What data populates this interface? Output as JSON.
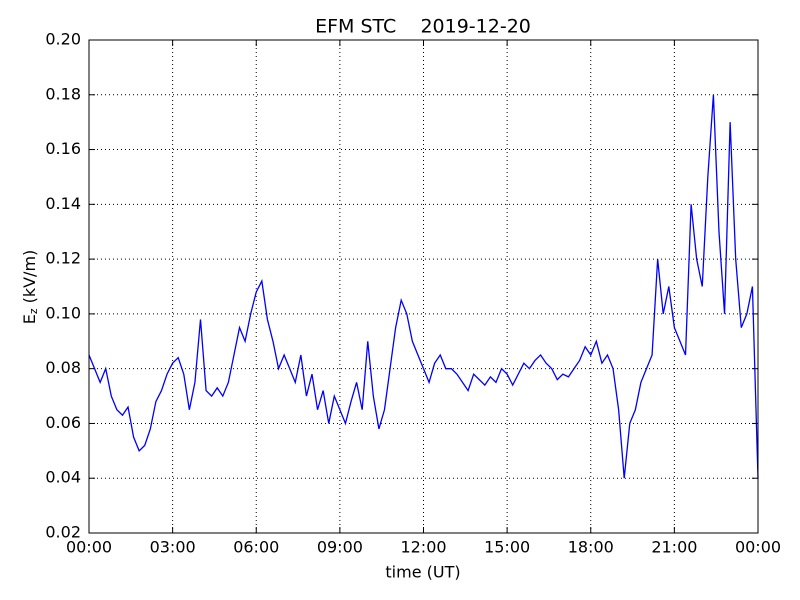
{
  "chart_data": {
    "type": "line",
    "title": "EFM STC    2019-12-20",
    "x_label": "time (UT)",
    "y_label": {
      "base": "E",
      "subscript": "z",
      "unit": "(kV/m)"
    },
    "x": [
      0,
      0.2,
      0.4,
      0.6,
      0.8,
      1,
      1.2,
      1.4,
      1.6,
      1.8,
      2,
      2.2,
      2.4,
      2.6,
      2.8,
      3,
      3.2,
      3.4,
      3.6,
      3.8,
      4,
      4.2,
      4.4,
      4.6,
      4.8,
      5,
      5.2,
      5.4,
      5.6,
      5.8,
      6,
      6.2,
      6.4,
      6.6,
      6.8,
      7,
      7.2,
      7.4,
      7.6,
      7.8,
      8,
      8.2,
      8.4,
      8.6,
      8.8,
      9,
      9.2,
      9.4,
      9.6,
      9.8,
      10,
      10.2,
      10.4,
      10.6,
      10.8,
      11,
      11.2,
      11.4,
      11.6,
      11.8,
      12,
      12.2,
      12.4,
      12.6,
      12.8,
      13,
      13.2,
      13.4,
      13.6,
      13.8,
      14,
      14.2,
      14.4,
      14.6,
      14.8,
      15,
      15.2,
      15.4,
      15.6,
      15.8,
      16,
      16.2,
      16.4,
      16.6,
      16.8,
      17,
      17.2,
      17.4,
      17.6,
      17.8,
      18,
      18.2,
      18.4,
      18.6,
      18.8,
      19,
      19.2,
      19.4,
      19.6,
      19.8,
      20,
      20.2,
      20.4,
      20.6,
      20.8,
      21,
      21.2,
      21.4,
      21.6,
      21.8,
      22,
      22.2,
      22.4,
      22.6,
      22.8,
      23,
      23.2,
      23.4,
      23.6,
      23.8,
      24
    ],
    "series": [
      {
        "color": "#0000ff",
        "values": [
          0.085,
          0.08,
          0.075,
          0.08,
          0.07,
          0.065,
          0.063,
          0.066,
          0.055,
          0.05,
          0.052,
          0.058,
          0.068,
          0.072,
          0.078,
          0.082,
          0.084,
          0.078,
          0.065,
          0.075,
          0.098,
          0.072,
          0.07,
          0.073,
          0.07,
          0.075,
          0.085,
          0.095,
          0.09,
          0.1,
          0.108,
          0.112,
          0.098,
          0.09,
          0.08,
          0.085,
          0.08,
          0.075,
          0.085,
          0.07,
          0.078,
          0.065,
          0.072,
          0.06,
          0.07,
          0.065,
          0.06,
          0.068,
          0.075,
          0.065,
          0.09,
          0.07,
          0.058,
          0.065,
          0.08,
          0.095,
          0.105,
          0.1,
          0.09,
          0.085,
          0.08,
          0.075,
          0.082,
          0.085,
          0.08,
          0.08,
          0.078,
          0.075,
          0.072,
          0.078,
          0.076,
          0.074,
          0.077,
          0.075,
          0.08,
          0.078,
          0.074,
          0.078,
          0.082,
          0.08,
          0.083,
          0.085,
          0.082,
          0.08,
          0.076,
          0.078,
          0.077,
          0.08,
          0.083,
          0.088,
          0.085,
          0.09,
          0.082,
          0.085,
          0.08,
          0.065,
          0.04,
          0.06,
          0.065,
          0.075,
          0.08,
          0.085,
          0.12,
          0.1,
          0.11,
          0.095,
          0.09,
          0.085,
          0.14,
          0.12,
          0.11,
          0.15,
          0.18,
          0.13,
          0.1,
          0.17,
          0.12,
          0.095,
          0.1,
          0.11,
          0.04
        ]
      }
    ],
    "xlim": [
      0,
      24
    ],
    "xticks": [
      {
        "value": 0,
        "label": "00:00"
      },
      {
        "value": 3,
        "label": "03:00"
      },
      {
        "value": 6,
        "label": "06:00"
      },
      {
        "value": 9,
        "label": "09:00"
      },
      {
        "value": 12,
        "label": "12:00"
      },
      {
        "value": 15,
        "label": "15:00"
      },
      {
        "value": 18,
        "label": "18:00"
      },
      {
        "value": 21,
        "label": "21:00"
      },
      {
        "value": 24,
        "label": "00:00"
      }
    ],
    "ylim": [
      0.02,
      0.2
    ],
    "yticks": [
      0.02,
      0.04,
      0.06,
      0.08,
      {
        "value": 0.1,
        "label": "0.10"
      },
      0.12,
      0.14,
      0.16,
      0.18,
      {
        "value": 0.2,
        "label": "0.20"
      }
    ],
    "grid": true
  }
}
